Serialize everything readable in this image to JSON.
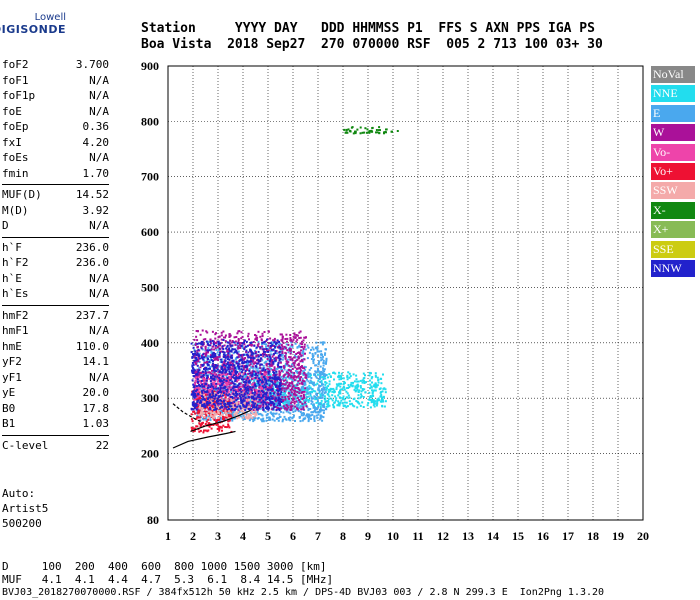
{
  "logo": {
    "line1": "Lowell",
    "line2": "DIGISONDE"
  },
  "header": {
    "row1": "Station     YYYY DAY   DDD HHMMSS P1  FFS S AXN PPS IGA PS",
    "row2": "Boa Vista  2018 Sep27  270 070000 RSF  005 2 713 100 03+ 30"
  },
  "params_group1": [
    {
      "k": "foF2",
      "v": "3.700"
    },
    {
      "k": "foF1",
      "v": "N/A"
    },
    {
      "k": "foF1p",
      "v": "N/A"
    },
    {
      "k": "foE",
      "v": "N/A"
    },
    {
      "k": "foEp",
      "v": "0.36"
    },
    {
      "k": "fxI",
      "v": "4.20"
    },
    {
      "k": "foEs",
      "v": "N/A"
    },
    {
      "k": "fmin",
      "v": "1.70"
    }
  ],
  "params_group2": [
    {
      "k": "MUF(D)",
      "v": "14.52"
    },
    {
      "k": "M(D)",
      "v": "3.92"
    },
    {
      "k": "D",
      "v": "N/A"
    }
  ],
  "params_group3": [
    {
      "k": "h`F",
      "v": "236.0"
    },
    {
      "k": "h`F2",
      "v": "236.0"
    },
    {
      "k": "h`E",
      "v": "N/A"
    },
    {
      "k": "h`Es",
      "v": "N/A"
    }
  ],
  "params_group4": [
    {
      "k": "hmF2",
      "v": "237.7"
    },
    {
      "k": "hmF1",
      "v": "N/A"
    },
    {
      "k": "hmE",
      "v": "110.0"
    },
    {
      "k": "yF2",
      "v": "14.1"
    },
    {
      "k": "yF1",
      "v": "N/A"
    },
    {
      "k": "yE",
      "v": "20.0"
    },
    {
      "k": "B0",
      "v": "17.8"
    },
    {
      "k": "B1",
      "v": "1.03"
    }
  ],
  "params_group5": [
    {
      "k": "C-level",
      "v": "22"
    }
  ],
  "auto": {
    "l1": "Auto:",
    "l2": "Artist5",
    "l3": "500200"
  },
  "bottom": {
    "d_row": "D     100  200  400  600  800 1000 1500 3000 [km]",
    "muf_row": "MUF   4.1  4.1  4.4  4.7  5.3  6.1  8.4 14.5 [MHz]",
    "file_row": "BVJ03_2018270070000.RSF / 384fx512h 50 kHz 2.5 km / DPS-4D BVJ03 003 / 2.8 N 299.3 E  Ion2Png 1.3.20"
  },
  "legend": [
    {
      "label": "NoVal",
      "color": "#888888"
    },
    {
      "label": "NNE",
      "color": "#22ddee"
    },
    {
      "label": "E",
      "color": "#4aa8ee"
    },
    {
      "label": "W",
      "color": "#aa1199"
    },
    {
      "label": "Vo-",
      "color": "#ee44aa"
    },
    {
      "label": "Vo+",
      "color": "#ee1133"
    },
    {
      "label": "SSW",
      "color": "#f4aaaa"
    },
    {
      "label": "X-",
      "color": "#118811"
    },
    {
      "label": "X+",
      "color": "#88bb55"
    },
    {
      "label": "SSE",
      "color": "#cccc11"
    },
    {
      "label": "NNW",
      "color": "#2222cc"
    }
  ],
  "chart_data": {
    "type": "scatter",
    "xlim": [
      1,
      20
    ],
    "ylim": [
      80,
      900
    ],
    "x_ticks": [
      1,
      2,
      3,
      4,
      5,
      6,
      7,
      8,
      9,
      10,
      11,
      12,
      13,
      14,
      15,
      16,
      17,
      18,
      19,
      20
    ],
    "y_ticks": [
      80,
      200,
      300,
      400,
      500,
      600,
      700,
      800,
      900
    ],
    "grid": "dotted",
    "series": [
      {
        "name": "NNE",
        "color": "#22ddee",
        "region": {
          "x": [
            4.0,
            9.7
          ],
          "y": [
            285,
            360
          ]
        }
      },
      {
        "name": "E",
        "color": "#4aa8ee",
        "region": {
          "x": [
            2.0,
            7.3
          ],
          "y": [
            260,
            430
          ]
        }
      },
      {
        "name": "W",
        "color": "#aa1199",
        "region": {
          "x": [
            2.0,
            6.5
          ],
          "y": [
            280,
            450
          ]
        }
      },
      {
        "name": "Vo-",
        "color": "#ee44aa",
        "region": {
          "x": [
            2.0,
            5.0
          ],
          "y": [
            290,
            360
          ]
        }
      },
      {
        "name": "Vo+",
        "color": "#ee1133",
        "region": {
          "x": [
            1.9,
            3.5
          ],
          "y": [
            240,
            330
          ]
        }
      },
      {
        "name": "SSW",
        "color": "#f4aaaa",
        "region": {
          "x": [
            2.2,
            4.5
          ],
          "y": [
            265,
            320
          ]
        }
      },
      {
        "name": "X-",
        "color": "#118811",
        "region": {
          "x": [
            8.0,
            10.2
          ],
          "y": [
            780,
            795
          ]
        }
      },
      {
        "name": "NNW",
        "color": "#2222cc",
        "region": {
          "x": [
            1.9,
            5.5
          ],
          "y": [
            280,
            430
          ]
        }
      }
    ],
    "traces": [
      {
        "points": [
          [
            1.2,
            210
          ],
          [
            1.8,
            222
          ],
          [
            2.6,
            230
          ],
          [
            3.3,
            236
          ],
          [
            3.7,
            240
          ]
        ]
      },
      {
        "points": [
          [
            1.9,
            240
          ],
          [
            2.5,
            250
          ],
          [
            3.2,
            258
          ],
          [
            3.8,
            268
          ],
          [
            4.3,
            278
          ]
        ]
      },
      {
        "points": [
          [
            1.2,
            290
          ],
          [
            1.6,
            275
          ],
          [
            2.1,
            262
          ],
          [
            2.3,
            258
          ]
        ]
      }
    ]
  }
}
